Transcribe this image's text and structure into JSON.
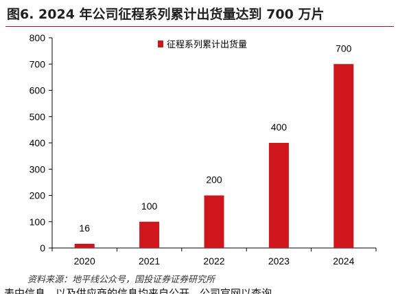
{
  "title": "图6. 2024 年公司征程系列累计出货量达到 700 万片",
  "chart_data": {
    "type": "bar",
    "categories": [
      "2020",
      "2021",
      "2022",
      "2023",
      "2024"
    ],
    "series": [
      {
        "name": "征程系列累计出货量",
        "values": [
          16,
          100,
          200,
          400,
          700
        ],
        "color": "#d0161d"
      }
    ],
    "data_labels": [
      "16",
      "100",
      "200",
      "400",
      "700"
    ],
    "ylim": [
      0,
      800
    ],
    "yticks": [
      0,
      100,
      200,
      300,
      400,
      500,
      600,
      700,
      800
    ],
    "grid": false,
    "legend_position": "top-center"
  },
  "source": "资料来源：地平线公众号，国投证券证券研究所",
  "cut_text": "表中信息，以及供应商的信息均来自公开，公司官网以查询"
}
